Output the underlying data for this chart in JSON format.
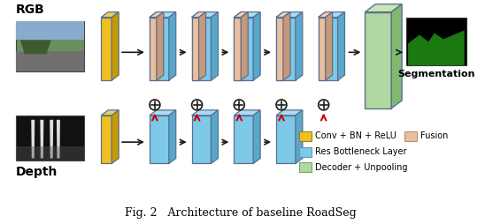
{
  "title": "Fig. 2   Architecture of baseline RoadSeg",
  "bg_color": "#ffffff",
  "rgb_label": "RGB",
  "depth_label": "Depth",
  "seg_label": "Segmentation",
  "yellow": "#F0C020",
  "yellow_side": "#c89a00",
  "yellow_top": "#e8d060",
  "blue": "#7EC8E8",
  "blue_side": "#58a8cc",
  "blue_top": "#a8ddf5",
  "green": "#B0D8A0",
  "green_side": "#80b870",
  "green_top": "#c8e8b8",
  "peach": "#E8C0A0",
  "peach_side": "#c89878",
  "peach_top": "#f0d0b8",
  "edge_col": "#5a7090",
  "arrow_color": "#1a1a1a",
  "red_color": "#cc0000",
  "legend_items": [
    {
      "label": "Conv + BN + ReLU",
      "color": "#F0C020",
      "edge": "#a08010"
    },
    {
      "label": "Res Bottleneck Layer",
      "color": "#7EC8E8",
      "edge": "#5a9ab8"
    },
    {
      "label": "Decoder + Unpooling",
      "color": "#B0D8A0",
      "edge": "#70a860"
    },
    {
      "label": "Fusion",
      "color": "#E8C0A0",
      "edge": "#b89070"
    }
  ]
}
